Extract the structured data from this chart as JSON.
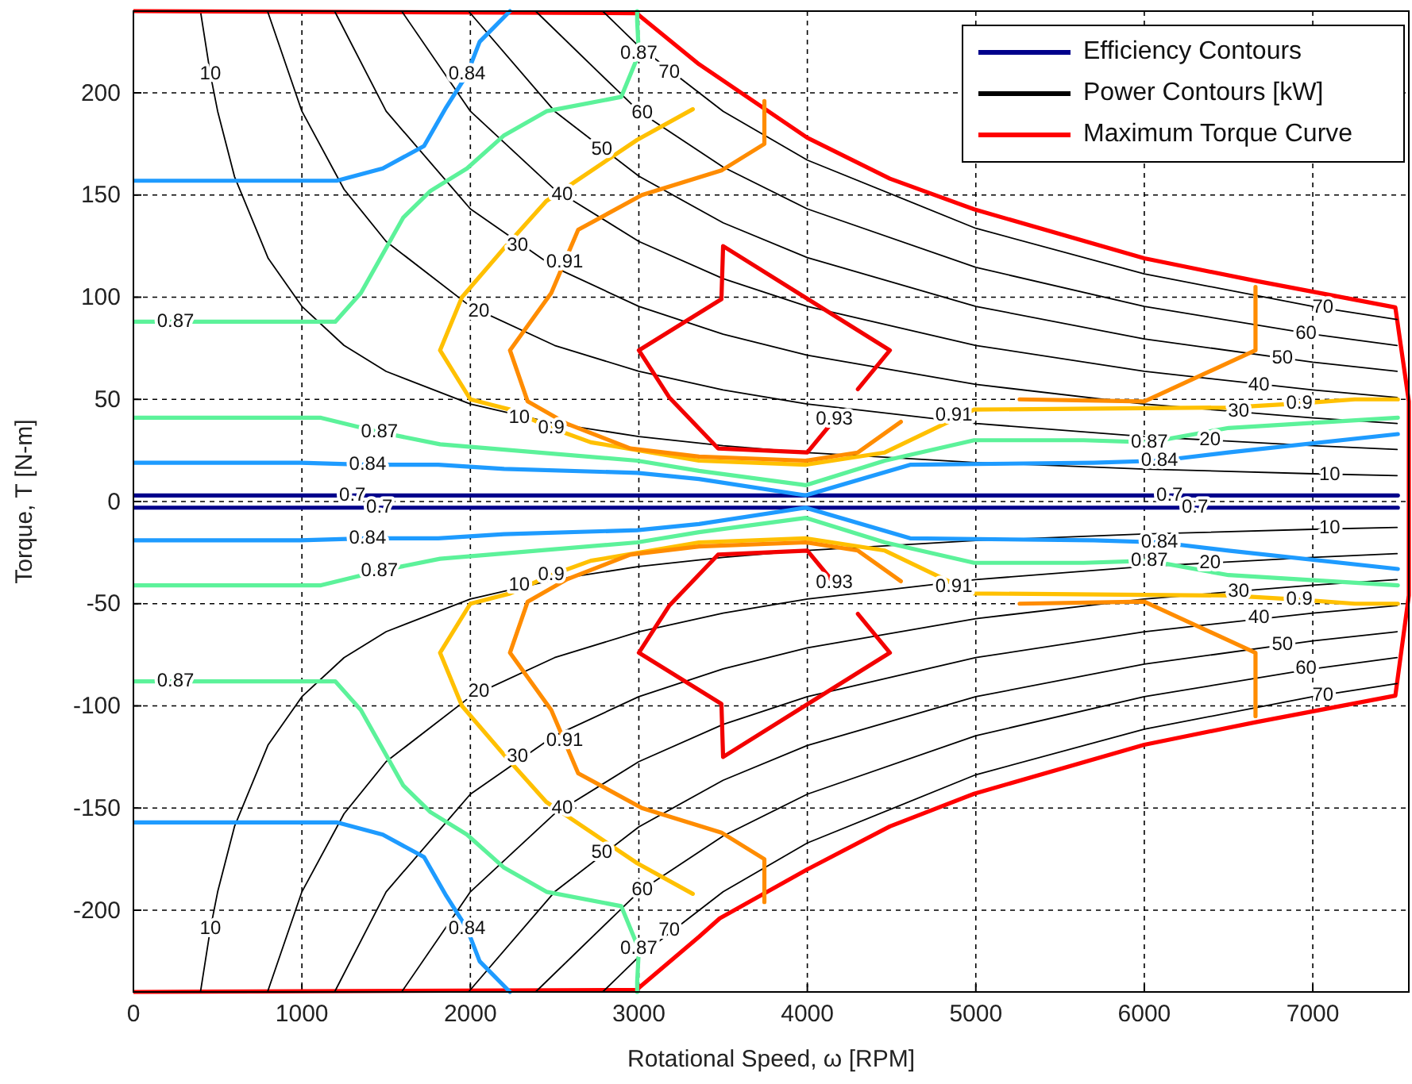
{
  "chart_data": {
    "type": "line",
    "xlabel": "Rotational Speed, ω [RPM]",
    "ylabel": "Torque, T [N-m]",
    "xlim": [
      0,
      7570
    ],
    "ylim": [
      -240,
      240
    ],
    "xticks": [
      0,
      1000,
      2000,
      3000,
      4000,
      5000,
      6000,
      7000
    ],
    "yticks": [
      -200,
      -150,
      -100,
      -50,
      0,
      50,
      100,
      150,
      200
    ],
    "grid": true,
    "legend": "top right",
    "series": [
      {
        "name": "Efficiency Contours",
        "color": "#00008b",
        "x": [
          0,
          1085,
          1300,
          1690,
          5930,
          6150,
          6530,
          7505
        ],
        "values": [
          3,
          3,
          3,
          3,
          3,
          3,
          3,
          3
        ]
      },
      {
        "name": "Power Contours [kW]",
        "color": "#000000",
        "x": [
          398,
          457,
          500,
          600,
          800,
          1000,
          1250,
          1500,
          2000,
          2500,
          3000,
          3500,
          4000,
          5000,
          6000,
          7000,
          7500
        ],
        "values": [
          240,
          209,
          191,
          159,
          119,
          95.5,
          76.4,
          63.7,
          47.7,
          38.2,
          31.8,
          27.3,
          23.9,
          19.1,
          15.9,
          13.6,
          12.7
        ]
      },
      {
        "name": "Maximum Torque Curve",
        "color": "#ff0000",
        "x": [
          0,
          2985,
          3357,
          4000,
          4490,
          4990,
          6000,
          6660,
          7490,
          7570,
          7570,
          7490,
          6660,
          6000,
          4990,
          4490,
          4000,
          3480,
          3357,
          2985,
          0
        ],
        "values": [
          240,
          239,
          214,
          178,
          158,
          143,
          119,
          108,
          95,
          49,
          -46,
          -95,
          -108,
          -119,
          -143,
          -159,
          -180,
          -204,
          -213,
          -239,
          -240
        ]
      },
      {
        "color": "#00008b",
        "x": [
          0,
          1085,
          1460,
          1690,
          5930,
          6300,
          6530,
          7505
        ],
        "values": [
          -3,
          -3,
          -3,
          -3,
          -3,
          -3,
          -3,
          -3
        ]
      },
      {
        "color": "#000000",
        "x": [
          398,
          457,
          500,
          600,
          800,
          1000,
          1250,
          1500,
          2000,
          2500,
          3000,
          3500,
          4000,
          5000,
          6000,
          7000,
          7500
        ],
        "values": [
          -240,
          -209,
          -191,
          -159,
          -119,
          -95.5,
          -76.4,
          -63.7,
          -47.7,
          -38.2,
          -31.8,
          -27.3,
          -23.9,
          -19.1,
          -15.9,
          -13.6,
          -12.7
        ]
      },
      {
        "color": "#000000",
        "x": [
          796,
          1000,
          1250,
          1500,
          2000,
          2500,
          3000,
          3500,
          4000,
          5000,
          6000,
          7000,
          7500
        ],
        "values": [
          240,
          191,
          152.8,
          127.3,
          95.5,
          76.4,
          63.7,
          54.6,
          47.7,
          38.2,
          31.8,
          27.3,
          25.5
        ]
      },
      {
        "color": "#000000",
        "x": [
          796,
          1000,
          1250,
          1500,
          2000,
          2500,
          3000,
          3500,
          4000,
          5000,
          6000,
          7000,
          7500
        ],
        "values": [
          -240,
          -191,
          -152.8,
          -127.3,
          -95.5,
          -76.4,
          -63.7,
          -54.6,
          -47.7,
          -38.2,
          -31.8,
          -27.3,
          -25.5
        ]
      },
      {
        "color": "#000000",
        "x": [
          1194,
          1500,
          2000,
          2500,
          3000,
          3500,
          4000,
          5000,
          6000,
          7000,
          7500
        ],
        "values": [
          240,
          191,
          143.2,
          114.6,
          95.5,
          81.9,
          71.6,
          57.3,
          47.7,
          40.9,
          38.2
        ]
      },
      {
        "color": "#000000",
        "x": [
          1194,
          1500,
          2000,
          2500,
          3000,
          3500,
          4000,
          5000,
          6000,
          7000,
          7500
        ],
        "values": [
          -240,
          -191,
          -143.2,
          -114.6,
          -95.5,
          -81.9,
          -71.6,
          -57.3,
          -47.7,
          -40.9,
          -38.2
        ]
      },
      {
        "color": "#000000",
        "x": [
          1592,
          2000,
          2500,
          3000,
          3500,
          4000,
          5000,
          6000,
          7000,
          7500
        ],
        "values": [
          240,
          191,
          152.8,
          127.3,
          109.1,
          95.5,
          76.4,
          63.7,
          54.6,
          50.9
        ]
      },
      {
        "color": "#000000",
        "x": [
          1592,
          2000,
          2500,
          3000,
          3500,
          4000,
          5000,
          6000,
          7000,
          7500
        ],
        "values": [
          -240,
          -191,
          -152.8,
          -127.3,
          -109.1,
          -95.5,
          -76.4,
          -63.7,
          -54.6,
          -50.9
        ]
      },
      {
        "color": "#000000",
        "x": [
          1989,
          2500,
          3000,
          3500,
          4000,
          5000,
          6000,
          7000,
          7500
        ],
        "values": [
          240,
          191,
          159.2,
          136.4,
          119.4,
          95.5,
          79.6,
          68.2,
          63.7
        ]
      },
      {
        "color": "#000000",
        "x": [
          1989,
          2500,
          3000,
          3500,
          4000,
          5000,
          6000,
          7000,
          7500
        ],
        "values": [
          -240,
          -191,
          -159.2,
          -136.4,
          -119.4,
          -95.5,
          -79.6,
          -68.2,
          -63.7
        ]
      },
      {
        "color": "#000000",
        "x": [
          2387,
          3000,
          3500,
          4000,
          5000,
          6000,
          7000,
          7500
        ],
        "values": [
          240,
          191,
          163.7,
          143.2,
          114.6,
          95.5,
          81.9,
          76.4
        ]
      },
      {
        "color": "#000000",
        "x": [
          2387,
          3000,
          3500,
          4000,
          5000,
          6000,
          7000,
          7500
        ],
        "values": [
          -240,
          -191,
          -163.7,
          -143.2,
          -114.6,
          -95.5,
          -81.9,
          -76.4
        ]
      },
      {
        "color": "#000000",
        "x": [
          2785,
          3000,
          3500,
          4000,
          5000,
          6000,
          7000,
          7500
        ],
        "values": [
          240,
          222.8,
          191,
          167.1,
          133.7,
          111.4,
          95.5,
          89.1
        ]
      },
      {
        "color": "#000000",
        "x": [
          2785,
          3000,
          3500,
          4000,
          5000,
          6000,
          7000,
          7500
        ],
        "values": [
          -240,
          -222.8,
          -191,
          -167.1,
          -133.7,
          -111.4,
          -95.5,
          -89.1
        ]
      },
      {
        "color": "#1e9bff",
        "x": [
          0,
          1207,
          1480,
          1725,
          1857,
          1980,
          2055,
          2235
        ],
        "values": [
          157,
          157,
          163,
          174,
          193,
          209,
          225,
          240
        ]
      },
      {
        "color": "#1e9bff",
        "x": [
          0,
          1207,
          1480,
          1725,
          1857,
          1980,
          2055,
          2235
        ],
        "values": [
          -157,
          -157,
          -163,
          -174,
          -193,
          -209,
          -225,
          -240
        ]
      },
      {
        "color": "#5cf29a",
        "x": [
          0,
          250,
          519,
          1198,
          1350,
          1602,
          1763,
          1980,
          2197,
          2452,
          2895,
          3000,
          2990,
          2990
        ],
        "values": [
          88,
          88,
          88,
          88,
          102,
          139,
          152,
          163,
          179,
          191,
          198,
          219,
          235,
          240
        ]
      },
      {
        "color": "#5cf29a",
        "x": [
          0,
          250,
          519,
          1198,
          1350,
          1602,
          1763,
          1980,
          2197,
          2452,
          2895,
          3000,
          2990,
          2990
        ],
        "values": [
          -88,
          -88,
          -88,
          -88,
          -102,
          -139,
          -152,
          -163,
          -179,
          -191,
          -198,
          -219,
          -235,
          -240
        ]
      },
      {
        "color": "#5cf29a",
        "x": [
          0,
          1113,
          1460,
          1820,
          2990,
          3357,
          3990,
          4460,
          4990,
          5640,
          6030,
          6500,
          7505
        ],
        "values": [
          41,
          41,
          34,
          28,
          20,
          15,
          8,
          20,
          30,
          30,
          29,
          36,
          41
        ]
      },
      {
        "color": "#5cf29a",
        "x": [
          0,
          1113,
          1460,
          1820,
          2990,
          3357,
          3990,
          4460,
          4990,
          5640,
          6030,
          6500,
          7505
        ],
        "values": [
          -41,
          -41,
          -34,
          -28,
          -20,
          -15,
          -8,
          -20,
          -30,
          -30,
          -29,
          -36,
          -41
        ]
      },
      {
        "color": "#1e9bff",
        "x": [
          0,
          990,
          1390,
          1810,
          2200,
          2990,
          3357,
          3990,
          4610,
          5700,
          6090,
          6500,
          7505
        ],
        "values": [
          19,
          19,
          18,
          18,
          16,
          14,
          11,
          3,
          18,
          19,
          20,
          24,
          33
        ]
      },
      {
        "color": "#1e9bff",
        "x": [
          0,
          990,
          1390,
          1810,
          2200,
          2990,
          3357,
          3990,
          4610,
          5700,
          6090,
          6500,
          7505
        ],
        "values": [
          -19,
          -19,
          -18,
          -18,
          -16,
          -14,
          -11,
          -3,
          -18,
          -19,
          -20,
          -24,
          -33
        ]
      },
      {
        "color": "#ffc000",
        "x": [
          3320,
          2990,
          2450,
          2200,
          1950,
          1820,
          2000,
          2235,
          2480,
          2715,
          3357,
          3990,
          4460,
          4990,
          6500,
          6920,
          7250,
          7505
        ],
        "values": [
          192,
          177,
          147,
          124,
          100,
          74,
          50,
          45,
          36,
          29,
          20,
          18,
          24,
          45,
          46,
          48,
          50,
          50
        ]
      },
      {
        "color": "#ffc000",
        "x": [
          3320,
          2990,
          2450,
          2200,
          1950,
          1820,
          2000,
          2235,
          2480,
          2715,
          3357,
          3990,
          4460,
          4990,
          6500,
          6920,
          7250,
          7505
        ],
        "values": [
          -192,
          -177,
          -147,
          -124,
          -100,
          -74,
          -50,
          -45,
          -36,
          -29,
          -20,
          -18,
          -24,
          -45,
          -46,
          -48,
          -50,
          -50
        ]
      },
      {
        "color": "#ff8c00",
        "x": [
          3745,
          3745,
          3490,
          3018,
          2640,
          2480,
          2235,
          2340,
          2575,
          2950,
          3357,
          3990,
          4300,
          4555
        ],
        "values": [
          196,
          175,
          162,
          150,
          133,
          102,
          74,
          49,
          38,
          26,
          22,
          20,
          24,
          39
        ]
      },
      {
        "color": "#ff8c00",
        "x": [
          3745,
          3745,
          3490,
          3018,
          2640,
          2480,
          2235,
          2340,
          2575,
          2950,
          3357,
          3990,
          4300,
          4555
        ],
        "values": [
          -196,
          -175,
          -162,
          -150,
          -133,
          -102,
          -74,
          -49,
          -38,
          -26,
          -22,
          -20,
          -24,
          -39
        ]
      },
      {
        "color": "#ff8c00",
        "x": [
          5260,
          6000,
          6660,
          6660
        ],
        "values": [
          50,
          49,
          74,
          105
        ]
      },
      {
        "color": "#ff8c00",
        "x": [
          5260,
          6000,
          6660,
          6660
        ],
        "values": [
          -50,
          -49,
          -74,
          -105
        ]
      },
      {
        "color": "#f20000",
        "x": [
          4300,
          4490,
          3500,
          3490,
          3000,
          3180,
          3470,
          4000,
          4160
        ],
        "values": [
          55,
          74,
          125,
          99,
          74,
          51,
          26,
          24,
          40
        ]
      },
      {
        "color": "#f20000",
        "x": [
          4300,
          4490,
          3500,
          3490,
          3000,
          3180,
          3470,
          4000,
          4160
        ],
        "values": [
          -55,
          -74,
          -125,
          -99,
          -74,
          -51,
          -26,
          -24,
          -40
        ]
      }
    ],
    "annotations": [
      {
        "text": "0.84",
        "x": 1980,
        "y": 209
      },
      {
        "text": "0.87",
        "x": 250,
        "y": 88
      },
      {
        "text": "0.87",
        "x": 3000,
        "y": 219
      },
      {
        "text": "0.87",
        "x": 1460,
        "y": 34
      },
      {
        "text": "0.87",
        "x": 6030,
        "y": 29
      },
      {
        "text": "0.84",
        "x": 1390,
        "y": 18
      },
      {
        "text": "0.84",
        "x": 6090,
        "y": 20
      },
      {
        "text": "0.7",
        "x": 1300,
        "y": 3
      },
      {
        "text": "0.7",
        "x": 6150,
        "y": 3
      },
      {
        "text": "0.9",
        "x": 2480,
        "y": 36
      },
      {
        "text": "0.9",
        "x": 6920,
        "y": 48
      },
      {
        "text": "0.91",
        "x": 2560,
        "y": 117
      },
      {
        "text": "0.91",
        "x": 4870,
        "y": 42
      },
      {
        "text": "0.93",
        "x": 4160,
        "y": 40
      },
      {
        "text": "10",
        "x": 457,
        "y": 209
      },
      {
        "text": "10",
        "x": 2290,
        "y": 41
      },
      {
        "text": "10",
        "x": 7100,
        "y": 13
      },
      {
        "text": "20",
        "x": 2050,
        "y": 93
      },
      {
        "text": "20",
        "x": 6390,
        "y": 30
      },
      {
        "text": "30",
        "x": 2280,
        "y": 125
      },
      {
        "text": "30",
        "x": 6560,
        "y": 44
      },
      {
        "text": "40",
        "x": 2545,
        "y": 150
      },
      {
        "text": "40",
        "x": 6680,
        "y": 57
      },
      {
        "text": "50",
        "x": 2780,
        "y": 172
      },
      {
        "text": "50",
        "x": 6820,
        "y": 70
      },
      {
        "text": "60",
        "x": 3020,
        "y": 190
      },
      {
        "text": "60",
        "x": 6960,
        "y": 82
      },
      {
        "text": "70",
        "x": 3180,
        "y": 210
      },
      {
        "text": "70",
        "x": 7060,
        "y": 95
      },
      {
        "text": "0.84",
        "x": 1980,
        "y": -209
      },
      {
        "text": "0.87",
        "x": 250,
        "y": -88
      },
      {
        "text": "0.87",
        "x": 3000,
        "y": -219
      },
      {
        "text": "0.87",
        "x": 1460,
        "y": -34
      },
      {
        "text": "0.87",
        "x": 6030,
        "y": -29
      },
      {
        "text": "0.84",
        "x": 1390,
        "y": -18
      },
      {
        "text": "0.84",
        "x": 6090,
        "y": -20
      },
      {
        "text": "0.7",
        "x": 1460,
        "y": -3
      },
      {
        "text": "0.7",
        "x": 6300,
        "y": -3
      },
      {
        "text": "0.9",
        "x": 2480,
        "y": -36
      },
      {
        "text": "0.9",
        "x": 6920,
        "y": -48
      },
      {
        "text": "0.91",
        "x": 2560,
        "y": -117
      },
      {
        "text": "0.91",
        "x": 4870,
        "y": -42
      },
      {
        "text": "0.93",
        "x": 4160,
        "y": -40
      },
      {
        "text": "10",
        "x": 457,
        "y": -209
      },
      {
        "text": "10",
        "x": 2290,
        "y": -41
      },
      {
        "text": "10",
        "x": 7100,
        "y": -13
      },
      {
        "text": "20",
        "x": 2050,
        "y": -93
      },
      {
        "text": "20",
        "x": 6390,
        "y": -30
      },
      {
        "text": "30",
        "x": 2280,
        "y": -125
      },
      {
        "text": "30",
        "x": 6560,
        "y": -44
      },
      {
        "text": "40",
        "x": 2545,
        "y": -150
      },
      {
        "text": "40",
        "x": 6680,
        "y": -57
      },
      {
        "text": "50",
        "x": 2780,
        "y": -172
      },
      {
        "text": "50",
        "x": 6820,
        "y": -70
      },
      {
        "text": "60",
        "x": 3020,
        "y": -190
      },
      {
        "text": "60",
        "x": 6960,
        "y": -82
      },
      {
        "text": "70",
        "x": 3180,
        "y": -210
      },
      {
        "text": "70",
        "x": 7060,
        "y": -95
      }
    ]
  }
}
